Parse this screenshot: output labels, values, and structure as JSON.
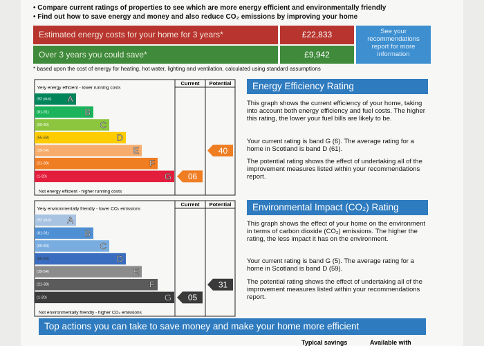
{
  "intro": {
    "bullets": [
      "Compare current ratings of properties to see which are more energy efficient and environmentally friendly",
      "Find out how to save energy and money and also reduce CO₂ emissions by improving your home"
    ]
  },
  "costs": {
    "rows": [
      {
        "label": "Estimated energy costs for your home for 3 years*",
        "value": "£22,833"
      },
      {
        "label": "Over 3 years you could save*",
        "value": "£9,942"
      }
    ],
    "note": "See your recommendations report for more information",
    "footnote": "* based upon the cost of energy for heating, hot water, lighting and ventilation, calculated using standard assumptions"
  },
  "energy": {
    "title": "Energy Efficiency Rating",
    "top_label": "Very energy efficient - lower running costs",
    "bottom_label": "Not energy efficient - higher running costs",
    "headers": [
      "Current",
      "Potential"
    ],
    "bands": [
      {
        "range": "(92 plus)",
        "letter": "A"
      },
      {
        "range": "(81-91)",
        "letter": "B"
      },
      {
        "range": "(69-80)",
        "letter": "C"
      },
      {
        "range": "(55-68)",
        "letter": "D"
      },
      {
        "range": "(39-54)",
        "letter": "E"
      },
      {
        "range": "(21-38)",
        "letter": "F"
      },
      {
        "range": "(1-20)",
        "letter": "G"
      }
    ],
    "current": "06",
    "potential": "40",
    "paragraphs": [
      "This graph shows the current efficiency of your home, taking into account both energy efficiency and fuel costs. The higher this rating, the lower your fuel bills are likely to be.",
      "Your current rating is band G (6). The average rating for a home in Scotland is band D (61).",
      "The potential rating shows the effect of undertaking all of the improvement measures listed within your recommendations report."
    ]
  },
  "environment": {
    "title": "Environmental Impact (CO₂) Rating",
    "top_label": "Very environmentally friendly - lower CO₂ emissions",
    "bottom_label": "Not environmentally friendly - higher CO₂ emissions",
    "headers": [
      "Current",
      "Potential"
    ],
    "bands": [
      {
        "range": "(92 plus)",
        "letter": "A"
      },
      {
        "range": "(81-91)",
        "letter": "B"
      },
      {
        "range": "(69-80)",
        "letter": "C"
      },
      {
        "range": "(55-68)",
        "letter": "D"
      },
      {
        "range": "(39-54)",
        "letter": "E"
      },
      {
        "range": "(21-38)",
        "letter": "F"
      },
      {
        "range": "(1-20)",
        "letter": "G"
      }
    ],
    "current": "05",
    "potential": "31",
    "paragraphs": [
      "This graph shows the effect of your home on the environment in terms of carbon dioxide (CO₂) emissions. The higher the rating, the less impact it has on the environment.",
      "Your current rating is band G (5). The average rating for a home in Scotland is band D (59).",
      "The potential rating shows the effect of undertaking all of the improvement measures listed within your recommendations report."
    ]
  },
  "actions": {
    "title": "Top actions you can take to save money and make your home more efficient",
    "headers": [
      "Typical savings",
      "Available with"
    ]
  }
}
